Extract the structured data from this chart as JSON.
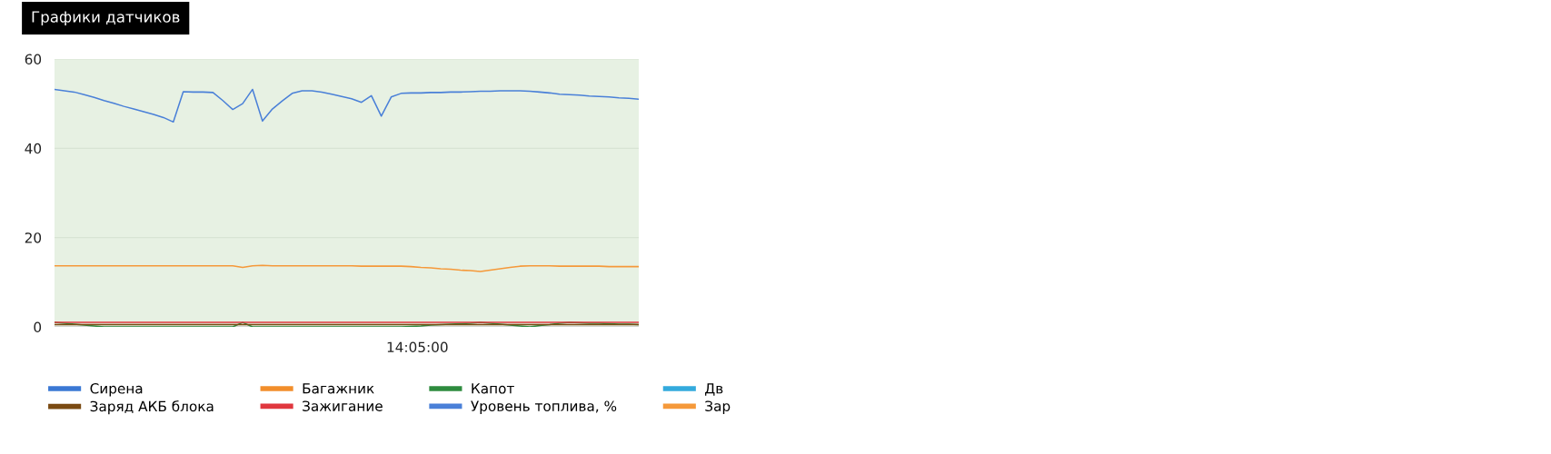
{
  "chart_data": {
    "type": "line",
    "title": "Графики датчиков",
    "categories": [
      null,
      null,
      null,
      null,
      null,
      null,
      null,
      null,
      null,
      null,
      null,
      null,
      null,
      null,
      null,
      null,
      null,
      null,
      null,
      null,
      null,
      null,
      null,
      null,
      null,
      null,
      null,
      null,
      null,
      null,
      null,
      null,
      null,
      null,
      null,
      null,
      null,
      null,
      null,
      null,
      null,
      null,
      null,
      null,
      null,
      null,
      null,
      null,
      null,
      null,
      null,
      null,
      null,
      null,
      null,
      null,
      null,
      null,
      null,
      null
    ],
    "annotations": [
      "14:05:00"
    ],
    "ylim": [
      0,
      60
    ],
    "yticks": [
      0,
      20,
      40,
      60
    ],
    "grid": "y",
    "legend": "bottom",
    "marker": "none",
    "line_style": "solid",
    "series": [
      {
        "name": "Сирена",
        "color": "#3a78d4",
        "values": [
          null,
          null,
          null,
          null,
          null,
          null,
          null,
          null,
          null,
          null,
          null,
          null,
          null,
          null,
          null,
          null,
          null,
          null,
          null,
          null,
          null,
          null,
          null,
          null,
          null,
          null,
          null,
          null,
          null,
          null,
          null,
          null,
          null,
          null,
          null,
          null,
          null,
          null,
          null,
          null,
          null,
          null,
          null,
          null,
          null,
          null,
          null,
          null,
          null,
          null,
          null,
          null,
          null,
          null,
          null,
          null,
          null,
          null,
          null,
          null
        ]
      },
      {
        "name": "Багажник",
        "color": "#f28e2b",
        "values": [
          null,
          null,
          null,
          null,
          null,
          null,
          null,
          null,
          null,
          null,
          null,
          null,
          null,
          null,
          null,
          null,
          null,
          null,
          null,
          null,
          null,
          null,
          null,
          null,
          null,
          null,
          null,
          null,
          null,
          null,
          null,
          null,
          null,
          null,
          null,
          null,
          null,
          null,
          null,
          null,
          null,
          null,
          null,
          null,
          null,
          null,
          null,
          null,
          null,
          null,
          null,
          null,
          null,
          null,
          null,
          null,
          null,
          null,
          null,
          null
        ]
      },
      {
        "name": "Капот",
        "color": "#2e8b3e",
        "values": [
          1.0,
          0.8,
          0.6,
          0.4,
          0.2,
          0.0,
          0.0,
          0.0,
          0.0,
          0.0,
          0.0,
          0.0,
          0.0,
          0.0,
          0.0,
          0.0,
          0.0,
          0.0,
          0.0,
          1.0,
          0.0,
          0.0,
          0.0,
          0.0,
          0.0,
          0.0,
          0.0,
          0.0,
          0.0,
          0.0,
          0.0,
          0.0,
          0.0,
          0.0,
          0.0,
          0.0,
          0.1,
          0.2,
          0.4,
          0.5,
          0.6,
          0.7,
          0.8,
          1.0,
          0.8,
          0.6,
          0.4,
          0.2,
          0.0,
          0.3,
          0.5,
          0.8,
          1.0,
          0.9,
          0.8,
          0.8,
          0.7,
          0.6,
          0.6,
          0.5
        ]
      },
      {
        "name": "Дв",
        "color": "#33aadd",
        "values": [
          null,
          null,
          null,
          null,
          null,
          null,
          null,
          null,
          null,
          null,
          null,
          null,
          null,
          null,
          null,
          null,
          null,
          null,
          null,
          null,
          null,
          null,
          null,
          null,
          null,
          null,
          null,
          null,
          null,
          null,
          null,
          null,
          null,
          null,
          null,
          null,
          null,
          null,
          null,
          null,
          null,
          null,
          null,
          null,
          null,
          null,
          null,
          null,
          null,
          null,
          null,
          null,
          null,
          null,
          null,
          null,
          null,
          null,
          null,
          null
        ]
      },
      {
        "name": "Заряд АКБ блока",
        "color": "#7a4a12",
        "values": [
          0.5,
          0.5,
          0.5,
          0.5,
          0.5,
          0.5,
          0.5,
          0.5,
          0.5,
          0.5,
          0.5,
          0.5,
          0.5,
          0.5,
          0.5,
          0.5,
          0.5,
          0.5,
          0.5,
          0.5,
          0.5,
          0.5,
          0.5,
          0.5,
          0.5,
          0.5,
          0.5,
          0.5,
          0.5,
          0.5,
          0.5,
          0.5,
          0.5,
          0.5,
          0.5,
          0.5,
          0.5,
          0.5,
          0.5,
          0.5,
          0.5,
          0.5,
          0.5,
          0.5,
          0.5,
          0.5,
          0.5,
          0.5,
          0.5,
          0.5,
          0.5,
          0.5,
          0.5,
          0.5,
          0.5,
          0.5,
          0.5,
          0.5,
          0.5,
          0.5
        ]
      },
      {
        "name": "Зажигание",
        "color": "#e0373e",
        "values": [
          1.0,
          1.0,
          1.0,
          1.0,
          1.0,
          1.0,
          1.0,
          1.0,
          1.0,
          1.0,
          1.0,
          1.0,
          1.0,
          1.0,
          1.0,
          1.0,
          1.0,
          1.0,
          1.0,
          1.0,
          1.0,
          1.0,
          1.0,
          1.0,
          1.0,
          1.0,
          1.0,
          1.0,
          1.0,
          1.0,
          1.0,
          1.0,
          1.0,
          1.0,
          1.0,
          1.0,
          1.0,
          1.0,
          1.0,
          1.0,
          1.0,
          1.0,
          1.0,
          1.0,
          1.0,
          1.0,
          1.0,
          1.0,
          1.0,
          1.0,
          1.0,
          1.0,
          1.0,
          1.0,
          1.0,
          1.0,
          1.0,
          1.0,
          1.0,
          1.0
        ]
      },
      {
        "name": "Уровень топлива, %",
        "color": "#4a80d8",
        "values": [
          53.2,
          52.9,
          52.6,
          52.0,
          51.4,
          50.7,
          50.1,
          49.4,
          48.8,
          48.2,
          47.6,
          46.9,
          45.9,
          52.7,
          52.6,
          52.6,
          52.5,
          50.7,
          48.7,
          50.0,
          53.2,
          46.1,
          48.8,
          50.6,
          52.3,
          52.9,
          52.9,
          52.6,
          52.1,
          51.6,
          51.1,
          50.3,
          51.8,
          47.2,
          51.5,
          52.3,
          52.4,
          52.4,
          52.5,
          52.5,
          52.6,
          52.6,
          52.7,
          52.8,
          52.8,
          52.9,
          52.9,
          52.9,
          52.8,
          52.6,
          52.4,
          52.1,
          52.0,
          51.9,
          51.7,
          51.6,
          51.5,
          51.3,
          51.2,
          51.0
        ]
      },
      {
        "name": "Зар",
        "color": "#f5993a",
        "values": [
          13.7,
          13.7,
          13.7,
          13.7,
          13.7,
          13.7,
          13.7,
          13.7,
          13.7,
          13.7,
          13.7,
          13.7,
          13.7,
          13.7,
          13.7,
          13.7,
          13.7,
          13.7,
          13.7,
          13.3,
          13.7,
          13.8,
          13.7,
          13.7,
          13.7,
          13.7,
          13.7,
          13.7,
          13.7,
          13.7,
          13.7,
          13.6,
          13.6,
          13.6,
          13.6,
          13.6,
          13.5,
          13.3,
          13.2,
          13.0,
          12.9,
          12.7,
          12.6,
          12.4,
          12.7,
          13.0,
          13.3,
          13.6,
          13.7,
          13.7,
          13.7,
          13.6,
          13.6,
          13.6,
          13.6,
          13.6,
          13.5,
          13.5,
          13.5,
          13.5
        ]
      }
    ]
  }
}
